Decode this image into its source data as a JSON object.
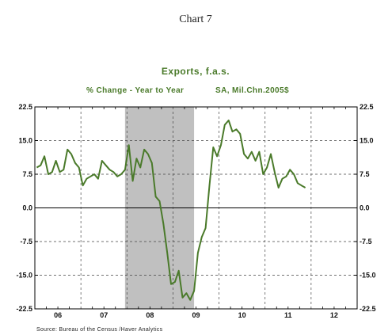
{
  "heading": "Chart 7",
  "chart_data": {
    "type": "line",
    "title": "Exports, f.a.s.",
    "subtitle_left": "% Change - Year to Year",
    "subtitle_right": "SA, Mil.Chn.2005$",
    "source": "Source:  Bureau of the Census /Haver Analytics",
    "ylim": [
      -22.5,
      22.5
    ],
    "yticks": [
      "22.5",
      "15.0",
      "7.5",
      "0.0",
      "-7.5",
      "-15.0",
      "-22.5"
    ],
    "ytick_values": [
      22.5,
      15.0,
      7.5,
      0.0,
      -7.5,
      -15.0,
      -22.5
    ],
    "x_start": "2006-01",
    "x_end": "2012-12",
    "xticks": [
      "06",
      "07",
      "08",
      "09",
      "10",
      "11",
      "12"
    ],
    "grid": true,
    "zero_line": true,
    "recession_shading": {
      "start": "2007-12",
      "end": "2009-06"
    },
    "colors": {
      "line": "#4a7a2a",
      "shade": "#c0c0c0",
      "text_accent": "#4a7a2a"
    },
    "series": [
      {
        "x": [
          "2006-01",
          "2006-02",
          "2006-03",
          "2006-04",
          "2006-05",
          "2006-06",
          "2006-07",
          "2006-08",
          "2006-09",
          "2006-10",
          "2006-11",
          "2006-12",
          "2007-01",
          "2007-02",
          "2007-03",
          "2007-04",
          "2007-05",
          "2007-06",
          "2007-07",
          "2007-08",
          "2007-09",
          "2007-10",
          "2007-11",
          "2007-12",
          "2008-01",
          "2008-02",
          "2008-03",
          "2008-04",
          "2008-05",
          "2008-06",
          "2008-07",
          "2008-08",
          "2008-09",
          "2008-10",
          "2008-11",
          "2008-12",
          "2009-01",
          "2009-02",
          "2009-03",
          "2009-04",
          "2009-05",
          "2009-06",
          "2009-07",
          "2009-08",
          "2009-09",
          "2009-10",
          "2009-11",
          "2009-12",
          "2010-01",
          "2010-02",
          "2010-03",
          "2010-04",
          "2010-05",
          "2010-06",
          "2010-07",
          "2010-08",
          "2010-09",
          "2010-10",
          "2010-11",
          "2010-12",
          "2011-01",
          "2011-02",
          "2011-03",
          "2011-04",
          "2011-05",
          "2011-06",
          "2011-07",
          "2011-08",
          "2011-09",
          "2011-10",
          "2011-11",
          "2011-12"
        ],
        "values": [
          9.0,
          9.5,
          11.5,
          7.5,
          8.0,
          10.5,
          8.0,
          8.5,
          13.0,
          12.0,
          10.0,
          9.0,
          5.0,
          6.5,
          7.0,
          7.5,
          6.5,
          10.5,
          9.5,
          8.5,
          8.0,
          7.0,
          7.5,
          8.5,
          14.0,
          6.0,
          11.0,
          9.0,
          13.0,
          12.0,
          10.0,
          2.5,
          1.5,
          -3.5,
          -10.0,
          -17.0,
          -16.5,
          -14.0,
          -20.0,
          -19.0,
          -20.5,
          -18.5,
          -10.0,
          -6.5,
          -4.5,
          5.0,
          13.5,
          11.5,
          14.0,
          18.5,
          19.5,
          17.0,
          17.5,
          16.5,
          12.0,
          11.0,
          12.5,
          10.5,
          12.5,
          7.5,
          9.0,
          12.0,
          8.0,
          4.5,
          6.5,
          7.0,
          8.5,
          7.5,
          5.5,
          5.0,
          4.5,
          null
        ]
      }
    ]
  }
}
